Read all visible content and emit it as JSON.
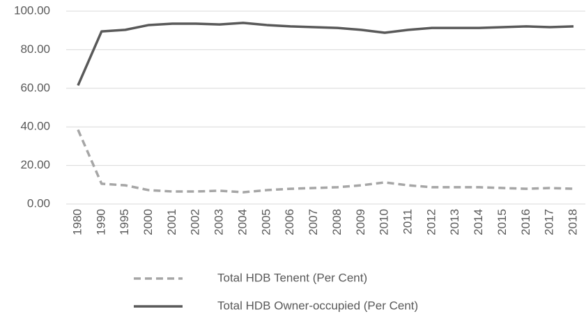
{
  "chart_data": {
    "type": "line",
    "categories": [
      "1980",
      "1990",
      "1995",
      "2000",
      "2001",
      "2002",
      "2003",
      "2004",
      "2005",
      "2006",
      "2007",
      "2008",
      "2009",
      "2010",
      "2011",
      "2012",
      "2013",
      "2014",
      "2015",
      "2016",
      "2017",
      "2018"
    ],
    "series": [
      {
        "name": "Total HDB Tenent (Per Cent)",
        "color": "#a6a6a6",
        "dashed": true,
        "values": [
          38.5,
          10.5,
          9.7,
          7.2,
          6.5,
          6.5,
          6.9,
          6.1,
          7.2,
          7.9,
          8.3,
          8.7,
          9.7,
          11.2,
          9.7,
          8.7,
          8.7,
          8.7,
          8.3,
          7.9,
          8.3,
          7.9
        ]
      },
      {
        "name": "Total HDB Owner-occupied (Per Cent)",
        "color": "#595959",
        "dashed": false,
        "values": [
          61.5,
          89.5,
          90.3,
          92.8,
          93.5,
          93.5,
          93.1,
          93.9,
          92.8,
          92.1,
          91.7,
          91.3,
          90.3,
          88.8,
          90.3,
          91.3,
          91.3,
          91.3,
          91.7,
          92.1,
          91.7,
          92.1
        ]
      }
    ],
    "ylim": [
      0,
      100
    ],
    "yticks": [
      {
        "value": 0,
        "label": "0.00"
      },
      {
        "value": 20,
        "label": "20.00"
      },
      {
        "value": 40,
        "label": "40.00"
      },
      {
        "value": 60,
        "label": "60.00"
      },
      {
        "value": 80,
        "label": "80.00"
      },
      {
        "value": 100,
        "label": "100.00"
      }
    ],
    "grid": true
  }
}
